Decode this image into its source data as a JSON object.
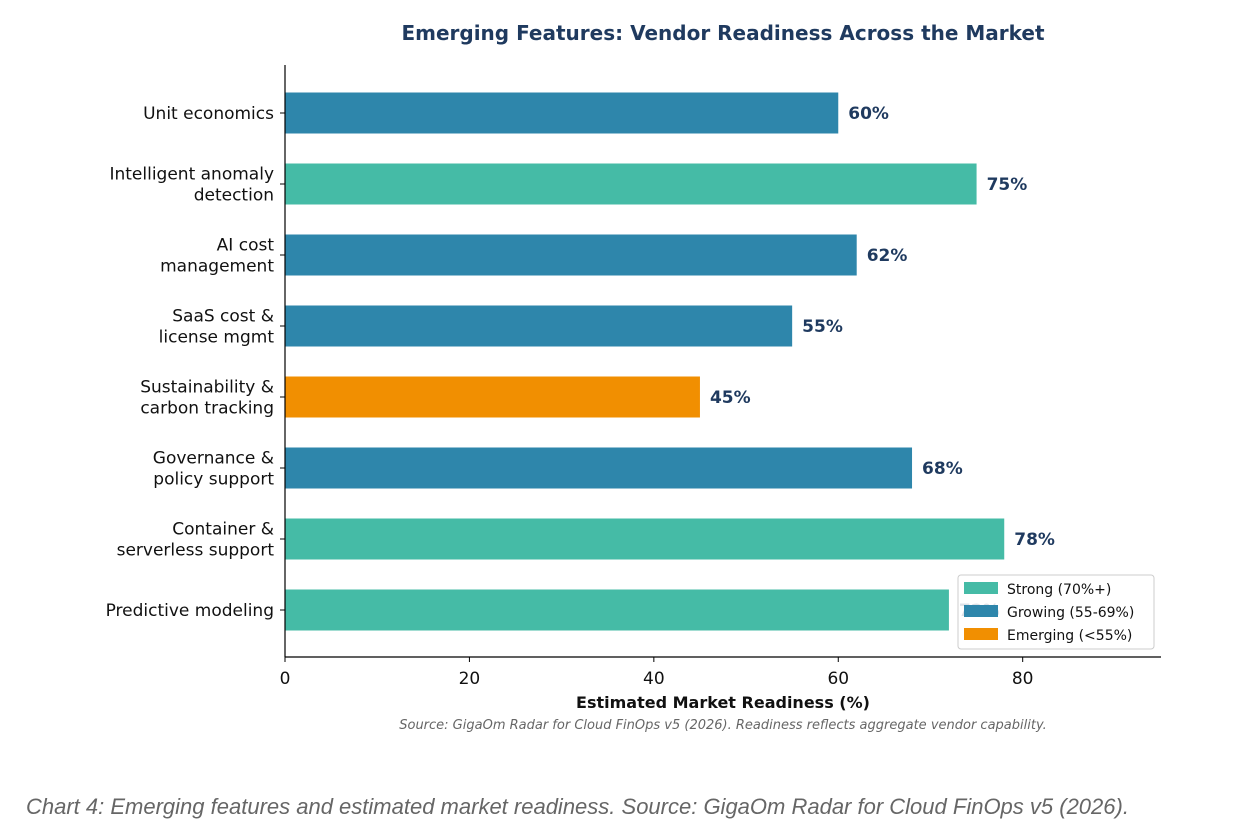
{
  "chart_data": {
    "type": "bar",
    "orientation": "horizontal",
    "title": "Emerging Features: Vendor Readiness Across the Market",
    "xlabel": "Estimated Market Readiness (%)",
    "ylabel": "",
    "xlim": [
      0,
      95
    ],
    "xticks": [
      0,
      20,
      40,
      60,
      80
    ],
    "grid": false,
    "categories": [
      "Unit economics",
      "Intelligent anomaly\ndetection",
      "AI cost\nmanagement",
      "SaaS cost &\nlicense mgmt",
      "Sustainability &\ncarbon tracking",
      "Governance &\npolicy support",
      "Container &\nserverless support",
      "Predictive modeling"
    ],
    "values": [
      60,
      75,
      62,
      55,
      45,
      68,
      78,
      72
    ],
    "data_labels": [
      "60%",
      "75%",
      "62%",
      "55%",
      "45%",
      "68%",
      "78%",
      "72%"
    ],
    "tiers": [
      "growing",
      "strong",
      "growing",
      "growing",
      "emerging",
      "growing",
      "strong",
      "strong"
    ],
    "legend_position": "lower-right",
    "legend": [
      {
        "key": "strong",
        "label": "Strong (70%+)",
        "color": "#45bba6"
      },
      {
        "key": "growing",
        "label": "Growing (55-69%)",
        "color": "#2e86ab"
      },
      {
        "key": "emerging",
        "label": "Emerging (<55%)",
        "color": "#f18f01"
      }
    ],
    "source_note": "Source: GigaOm Radar for Cloud FinOps v5 (2026). Readiness reflects aggregate vendor capability."
  },
  "caption": "Chart 4: Emerging features and estimated market readiness. Source: GigaOm Radar for Cloud FinOps v5 (2026)."
}
